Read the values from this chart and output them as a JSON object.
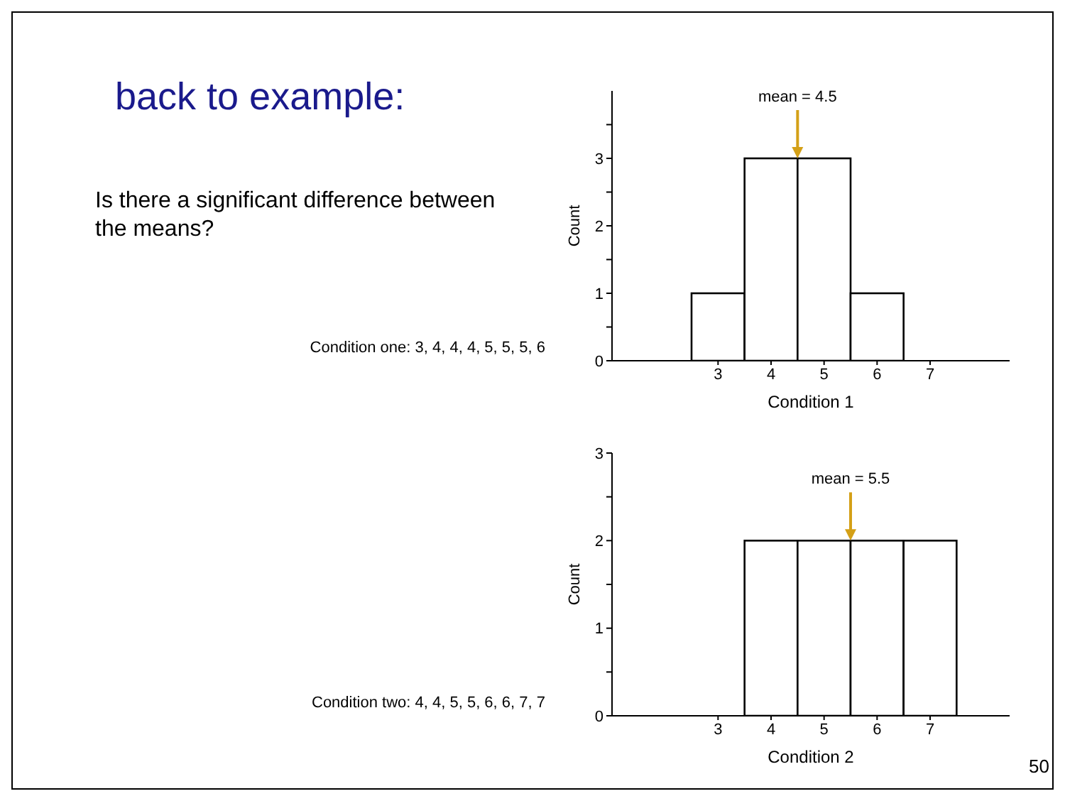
{
  "chart_data": [
    {
      "type": "other",
      "title": "back to example:",
      "annotations": [
        "Is there a significant difference between the means?",
        "50"
      ]
    },
    {
      "type": "histogram",
      "xlabel": "Condition 1",
      "ylabel": "Count",
      "bins": [
        2.5,
        3.5,
        4.5,
        5.5,
        6.5,
        7.5
      ],
      "values": [
        1,
        3,
        3,
        1,
        0
      ],
      "color": "#ffffff",
      "xlim": [
        1,
        8.5
      ],
      "xticks": [
        3,
        4,
        5,
        6,
        7
      ],
      "ylim": [
        0,
        4
      ],
      "yticks": [
        0,
        {
          "value": 0.5,
          "label": null
        },
        1,
        {
          "value": 1.5,
          "label": null
        },
        2,
        {
          "value": 2.5,
          "label": null
        },
        3,
        {
          "value": 3.5,
          "label": null
        }
      ],
      "annotations": [
        {
          "text": "mean = 4.5",
          "x": 4.5,
          "y": 3
        },
        "Condition one: 3, 4, 4, 4, 5, 5, 5, 6"
      ]
    },
    {
      "type": "histogram",
      "xlabel": "Condition 2",
      "ylabel": "Count",
      "bins": [
        2.5,
        3.5,
        4.5,
        5.5,
        6.5,
        7.5
      ],
      "values": [
        0,
        2,
        2,
        2,
        2
      ],
      "color": "#ffffff",
      "xlim": [
        1,
        8.5
      ],
      "xticks": [
        3,
        4,
        5,
        6,
        7
      ],
      "ylim": [
        0,
        3
      ],
      "yticks": [
        0,
        {
          "value": 0.5,
          "label": null
        },
        1,
        {
          "value": 1.5,
          "label": null
        },
        2,
        {
          "value": 2.5,
          "label": null
        },
        3
      ],
      "annotations": [
        {
          "text": "mean = 5.5",
          "x": 5.5,
          "y": 2
        },
        "Condition two: 4, 4, 5, 5, 6, 6, 7, 7"
      ]
    }
  ]
}
